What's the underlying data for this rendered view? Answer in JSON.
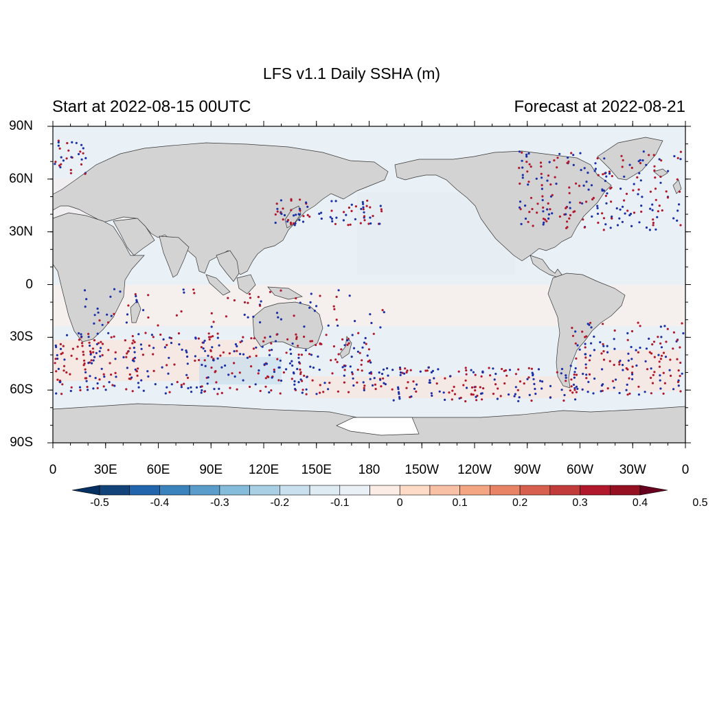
{
  "title": "LFS v1.1 Daily SSHA (m)",
  "start_text": "Start at 2022-08-15 00UTC",
  "forecast_text": "Forecast at 2022-08-21",
  "lat_labels": [
    "90N",
    "60N",
    "30N",
    "0",
    "30S",
    "60S",
    "90S"
  ],
  "lon_labels": [
    "0",
    "30E",
    "60E",
    "90E",
    "120E",
    "150E",
    "180",
    "150W",
    "120W",
    "90W",
    "60W",
    "30W",
    "0"
  ],
  "colorbar": {
    "labels": [
      "-0.5",
      "-0.4",
      "-0.3",
      "-0.2",
      "-0.1",
      "0",
      "0.1",
      "0.2",
      "0.3",
      "0.4",
      "0.5"
    ],
    "colors": [
      "#053061",
      "#12447a",
      "#2166ac",
      "#3a83bd",
      "#5a9dcb",
      "#86bcdb",
      "#a9cfe5",
      "#c9e0ef",
      "#deebf3",
      "#eaf1f6",
      "#fcece6",
      "#fddbc7",
      "#f8c0a4",
      "#f4a582",
      "#e88365",
      "#d6604d",
      "#c23b3b",
      "#b2182b",
      "#951021",
      "#67001f"
    ]
  },
  "colors": {
    "land": "#d3d3d3",
    "ocean_base": "#eaf1f6",
    "positive_obs": "#b2182b",
    "negative_obs": "#1a2fa8"
  }
}
